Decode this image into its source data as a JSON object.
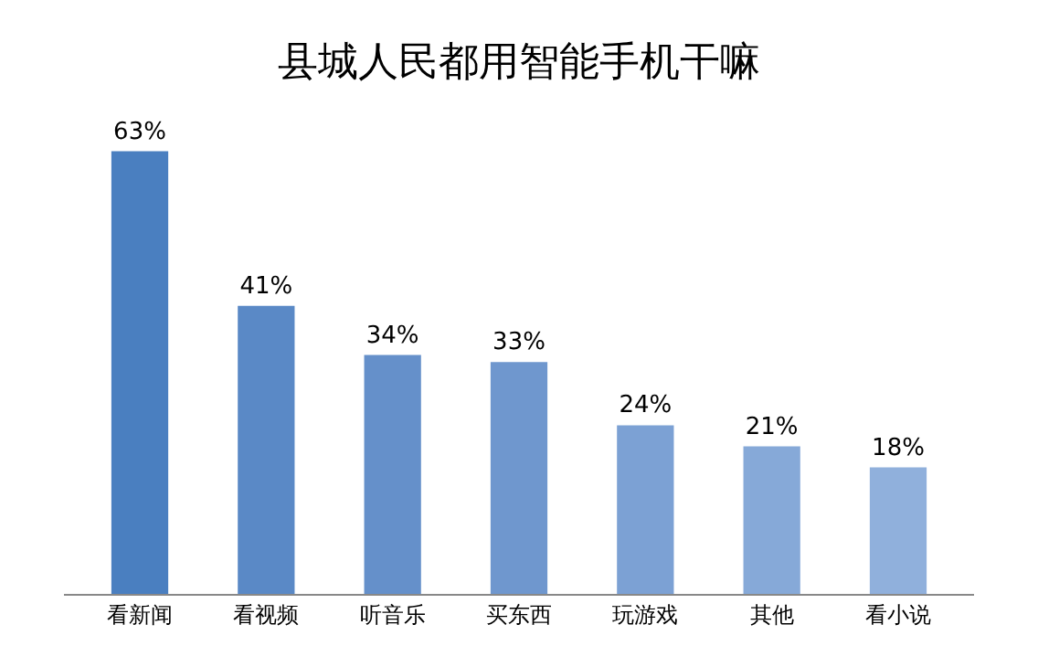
{
  "chart_data": {
    "type": "bar",
    "title": "县城人民都用智能手机干嘛",
    "categories": [
      "看新闻",
      "看视频",
      "听音乐",
      "买东西",
      "玩游戏",
      "其他",
      "看小说"
    ],
    "values": [
      63,
      41,
      34,
      33,
      24,
      21,
      18
    ],
    "value_labels": [
      "63%",
      "41%",
      "34%",
      "33%",
      "24%",
      "21%",
      "18%"
    ],
    "colors": [
      "#4a7fc0",
      "#5a89c6",
      "#6590ca",
      "#6f97ce",
      "#7ca1d4",
      "#86a9d8",
      "#90b0dc"
    ],
    "tick_labels": "x",
    "legend": false
  }
}
